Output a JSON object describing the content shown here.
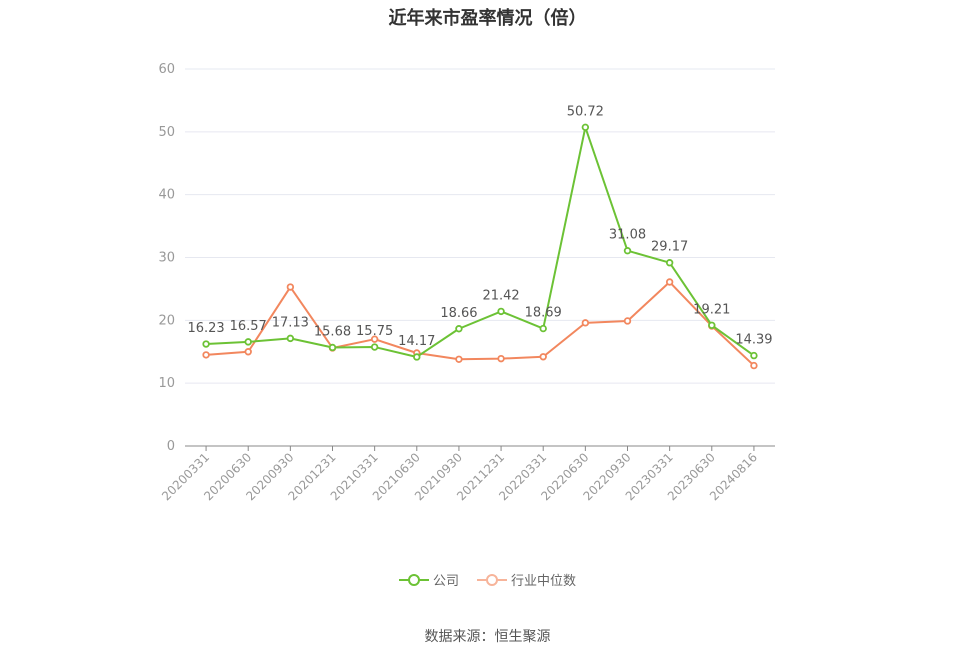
{
  "title": "近年来市盈率情况（倍）",
  "source": "数据来源：恒生聚源",
  "colors": {
    "company": "#6cc235",
    "industry": "#f2875e",
    "industry_legend": "#f7b49a",
    "grid": "#e6e8f0",
    "axis": "#888888"
  },
  "chart_data": {
    "type": "line",
    "title": "近年来市盈率情况（倍）",
    "xlabel": "",
    "ylabel": "",
    "ylim": [
      0,
      60
    ],
    "yticks": [
      0,
      10,
      20,
      30,
      40,
      50,
      60
    ],
    "grid": true,
    "legend_position": "bottom",
    "categories": [
      "20200331",
      "20200630",
      "20200930",
      "20201231",
      "20210331",
      "20210630",
      "20210930",
      "20211231",
      "20220331",
      "20220630",
      "20220930",
      "20230331",
      "20230630",
      "20240816"
    ],
    "series": [
      {
        "name": "公司",
        "values": [
          16.23,
          16.57,
          17.13,
          15.68,
          15.75,
          14.17,
          18.66,
          21.42,
          18.69,
          50.72,
          31.08,
          29.17,
          19.21,
          14.39
        ],
        "labels": [
          "16.23",
          "16.57",
          "17.13",
          "15.68",
          "15.75",
          "14.17",
          "18.66",
          "21.42",
          "18.69",
          "50.72",
          "31.08",
          "29.17",
          "19.21",
          "14.39"
        ]
      },
      {
        "name": "行业中位数",
        "values": [
          14.5,
          15.0,
          25.3,
          15.6,
          17.0,
          14.8,
          13.8,
          13.9,
          14.2,
          19.6,
          19.9,
          26.1,
          19.1,
          12.8
        ]
      }
    ]
  }
}
